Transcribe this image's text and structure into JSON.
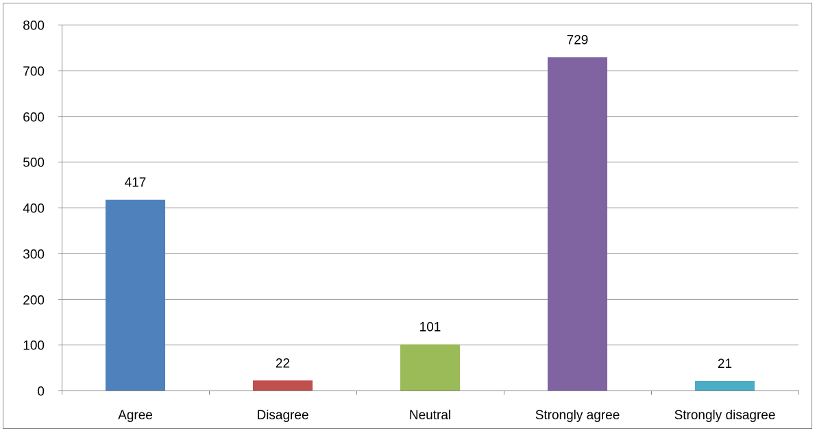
{
  "chart_data": {
    "type": "bar",
    "title": "",
    "xlabel": "",
    "ylabel": "",
    "categories": [
      "Agree",
      "Disagree",
      "Neutral",
      "Strongly agree",
      "Strongly disagree"
    ],
    "values": [
      417,
      22,
      101,
      729,
      21
    ],
    "data_labels": [
      "417",
      "22",
      "101",
      "729",
      "21"
    ],
    "colors": [
      "#4F81BD",
      "#C0504D",
      "#9BBB59",
      "#8064A2",
      "#4BACC6"
    ],
    "ylim": [
      0,
      800
    ],
    "yticks": [
      0,
      100,
      200,
      300,
      400,
      500,
      600,
      700,
      800
    ],
    "grid": true,
    "legend": "none"
  }
}
